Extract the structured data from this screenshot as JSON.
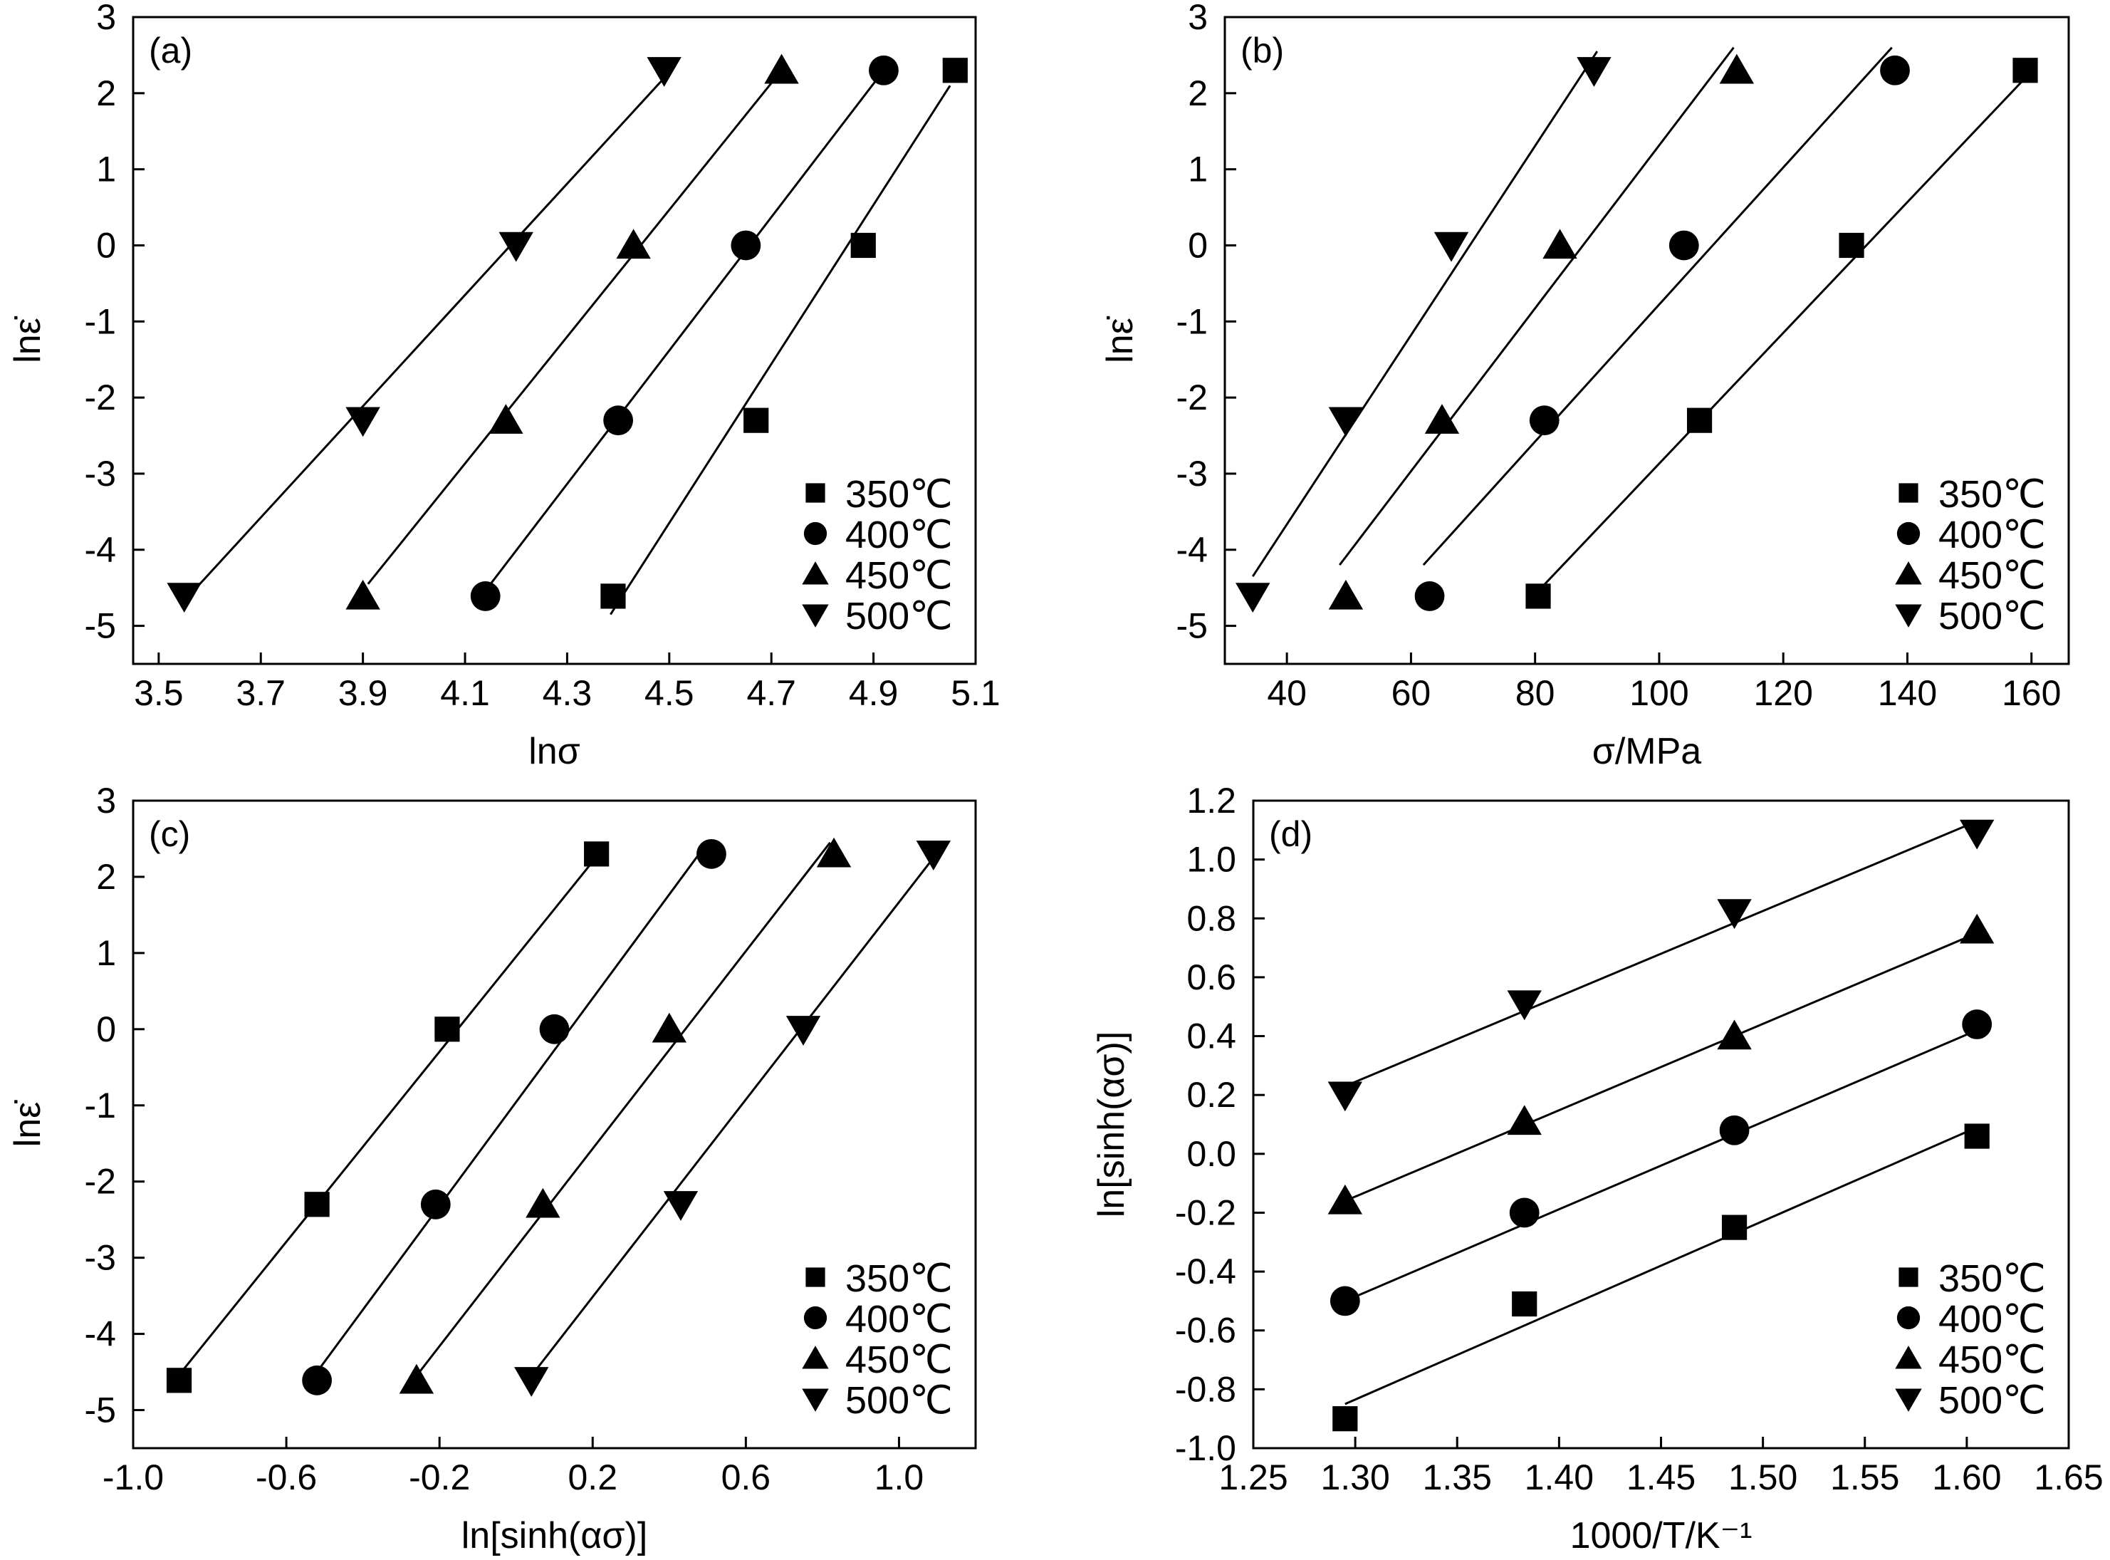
{
  "figure": {
    "legend_labels": [
      "350℃",
      "400℃",
      "450℃",
      "500℃"
    ],
    "marker_shapes": [
      "square",
      "circle",
      "triangle-up",
      "triangle-down"
    ],
    "ink_color": "#000000",
    "background_color": "#ffffff"
  },
  "chart_data": [
    {
      "id": "a",
      "type": "scatter",
      "panel_label": "(a)",
      "xlabel": "lnσ",
      "ylabel": "lnε̇",
      "xlim": [
        3.45,
        5.1
      ],
      "ylim": [
        -5.5,
        3
      ],
      "xticks": [
        3.5,
        3.7,
        3.9,
        4.1,
        4.3,
        4.5,
        4.7,
        4.9,
        5.1
      ],
      "xtick_labels": [
        "3.5",
        "3.7",
        "3.9",
        "4.1",
        "4.3",
        "4.5",
        "4.7",
        "4.9",
        "5.1"
      ],
      "yticks": [
        -5,
        -4,
        -3,
        -2,
        -1,
        0,
        1,
        2,
        3
      ],
      "ytick_labels": [
        "-5",
        "-4",
        "-3",
        "-2",
        "-1",
        "0",
        "1",
        "2",
        "3"
      ],
      "legend_position": "bottom-right",
      "series": [
        {
          "name": "350℃",
          "marker": "square",
          "x": [
            4.39,
            4.67,
            4.88,
            5.06
          ],
          "y": [
            -4.61,
            -2.3,
            0.0,
            2.3
          ],
          "fit": [
            [
              4.385,
              -4.85
            ],
            [
              5.05,
              2.1
            ]
          ]
        },
        {
          "name": "400℃",
          "marker": "circle",
          "x": [
            4.14,
            4.4,
            4.65,
            4.92
          ],
          "y": [
            -4.61,
            -2.3,
            0.0,
            2.3
          ],
          "fit": [
            [
              4.15,
              -4.45
            ],
            [
              4.92,
              2.3
            ]
          ]
        },
        {
          "name": "450℃",
          "marker": "triangle-up",
          "x": [
            3.9,
            4.18,
            4.43,
            4.72
          ],
          "y": [
            -4.61,
            -2.3,
            0.0,
            2.3
          ],
          "fit": [
            [
              3.91,
              -4.45
            ],
            [
              4.72,
              2.3
            ]
          ]
        },
        {
          "name": "500℃",
          "marker": "triangle-down",
          "x": [
            3.55,
            3.9,
            4.2,
            4.49
          ],
          "y": [
            -4.61,
            -2.3,
            0.0,
            2.3
          ],
          "fit": [
            [
              3.56,
              -4.6
            ],
            [
              4.49,
              2.2
            ]
          ]
        }
      ]
    },
    {
      "id": "b",
      "type": "scatter",
      "panel_label": "(b)",
      "xlabel": "σ/MPa",
      "ylabel": "lnε̇",
      "xlim": [
        30,
        166
      ],
      "ylim": [
        -5.5,
        3
      ],
      "xticks": [
        40,
        60,
        80,
        100,
        120,
        140,
        160
      ],
      "xtick_labels": [
        "40",
        "60",
        "80",
        "100",
        "120",
        "140",
        "160"
      ],
      "yticks": [
        -5,
        -4,
        -3,
        -2,
        -1,
        0,
        1,
        2,
        3
      ],
      "ytick_labels": [
        "-5",
        "-4",
        "-3",
        "-2",
        "-1",
        "0",
        "1",
        "2",
        "3"
      ],
      "legend_position": "bottom-right",
      "series": [
        {
          "name": "350℃",
          "marker": "square",
          "x": [
            80.5,
            106.5,
            131,
            159
          ],
          "y": [
            -4.61,
            -2.3,
            0.0,
            2.3
          ],
          "fit": [
            [
              81,
              -4.5
            ],
            [
              159,
              2.2
            ]
          ]
        },
        {
          "name": "400℃",
          "marker": "circle",
          "x": [
            63,
            81.5,
            104,
            138
          ],
          "y": [
            -4.61,
            -2.3,
            0.0,
            2.3
          ],
          "fit": [
            [
              62,
              -4.2
            ],
            [
              137.5,
              2.6
            ]
          ]
        },
        {
          "name": "450℃",
          "marker": "triangle-up",
          "x": [
            49.5,
            65,
            84,
            112.5
          ],
          "y": [
            -4.61,
            -2.3,
            0.0,
            2.3
          ],
          "fit": [
            [
              48.5,
              -4.2
            ],
            [
              112,
              2.6
            ]
          ]
        },
        {
          "name": "500℃",
          "marker": "triangle-down",
          "x": [
            34.5,
            49.5,
            66.5,
            89.5
          ],
          "y": [
            -4.61,
            -2.3,
            0.0,
            2.3
          ],
          "fit": [
            [
              34.5,
              -4.35
            ],
            [
              90,
              2.55
            ]
          ]
        }
      ]
    },
    {
      "id": "c",
      "type": "scatter",
      "panel_label": "(c)",
      "xlabel": "ln[sinh(ασ)]",
      "ylabel": "lnε̇",
      "xlim": [
        -1.0,
        1.2
      ],
      "ylim": [
        -5.5,
        3
      ],
      "xticks": [
        -1.0,
        -0.6,
        -0.2,
        0.2,
        0.6,
        1.0
      ],
      "xtick_labels": [
        "-1.0",
        "-0.6",
        "-0.2",
        "0.2",
        "0.6",
        "1.0"
      ],
      "yticks": [
        -5,
        -4,
        -3,
        -2,
        -1,
        0,
        1,
        2,
        3
      ],
      "ytick_labels": [
        "-5",
        "-4",
        "-3",
        "-2",
        "-1",
        "0",
        "1",
        "2",
        "3"
      ],
      "legend_position": "bottom-right",
      "series": [
        {
          "name": "350℃",
          "marker": "square",
          "x": [
            -0.88,
            -0.52,
            -0.18,
            0.21
          ],
          "y": [
            -4.61,
            -2.3,
            0.0,
            2.3
          ],
          "fit": [
            [
              -0.89,
              -4.6
            ],
            [
              0.2,
              2.2
            ]
          ]
        },
        {
          "name": "400℃",
          "marker": "circle",
          "x": [
            -0.52,
            -0.21,
            0.1,
            0.51
          ],
          "y": [
            -4.61,
            -2.3,
            0.0,
            2.3
          ],
          "fit": [
            [
              -0.52,
              -4.5
            ],
            [
              0.5,
              2.45
            ]
          ]
        },
        {
          "name": "450℃",
          "marker": "triangle-up",
          "x": [
            -0.26,
            0.07,
            0.4,
            0.83
          ],
          "y": [
            -4.61,
            -2.3,
            0.0,
            2.3
          ],
          "fit": [
            [
              -0.26,
              -4.55
            ],
            [
              0.82,
              2.45
            ]
          ]
        },
        {
          "name": "500℃",
          "marker": "triangle-down",
          "x": [
            0.04,
            0.43,
            0.75,
            1.09
          ],
          "y": [
            -4.61,
            -2.3,
            0.0,
            2.3
          ],
          "fit": [
            [
              0.04,
              -4.55
            ],
            [
              1.09,
              2.25
            ]
          ]
        }
      ]
    },
    {
      "id": "d",
      "type": "scatter",
      "panel_label": "(d)",
      "xlabel": "1000/T/K⁻¹",
      "ylabel": "ln[sinh(ασ)]",
      "xlim": [
        1.25,
        1.65
      ],
      "ylim": [
        -1.0,
        1.2
      ],
      "xticks": [
        1.25,
        1.3,
        1.35,
        1.4,
        1.45,
        1.5,
        1.55,
        1.6,
        1.65
      ],
      "xtick_labels": [
        "1.25",
        "1.30",
        "1.35",
        "1.40",
        "1.45",
        "1.50",
        "1.55",
        "1.60",
        "1.65"
      ],
      "yticks": [
        -1.0,
        -0.8,
        -0.6,
        -0.4,
        -0.2,
        0.0,
        0.2,
        0.4,
        0.6,
        0.8,
        1.0,
        1.2
      ],
      "ytick_labels": [
        "-1.0",
        "-0.8",
        "-0.6",
        "-0.4",
        "-0.2",
        "0.0",
        "0.2",
        "0.4",
        "0.6",
        "0.8",
        "1.0",
        "1.2"
      ],
      "legend_position": "bottom-right",
      "series": [
        {
          "name": "350℃",
          "marker": "square",
          "x": [
            1.295,
            1.383,
            1.486,
            1.605
          ],
          "y": [
            -0.9,
            -0.51,
            -0.25,
            0.06
          ],
          "fit": [
            [
              1.295,
              -0.85
            ],
            [
              1.605,
              0.09
            ]
          ]
        },
        {
          "name": "400℃",
          "marker": "circle",
          "x": [
            1.295,
            1.383,
            1.486,
            1.605
          ],
          "y": [
            -0.5,
            -0.2,
            0.08,
            0.44
          ],
          "fit": [
            [
              1.295,
              -0.5
            ],
            [
              1.605,
              0.42
            ]
          ]
        },
        {
          "name": "450℃",
          "marker": "triangle-up",
          "x": [
            1.295,
            1.383,
            1.486,
            1.605
          ],
          "y": [
            -0.16,
            0.11,
            0.4,
            0.76
          ],
          "fit": [
            [
              1.295,
              -0.16
            ],
            [
              1.605,
              0.75
            ]
          ]
        },
        {
          "name": "500℃",
          "marker": "triangle-down",
          "x": [
            1.295,
            1.383,
            1.486,
            1.605
          ],
          "y": [
            0.2,
            0.51,
            0.82,
            1.09
          ],
          "fit": [
            [
              1.295,
              0.23
            ],
            [
              1.605,
              1.13
            ]
          ]
        }
      ]
    }
  ]
}
